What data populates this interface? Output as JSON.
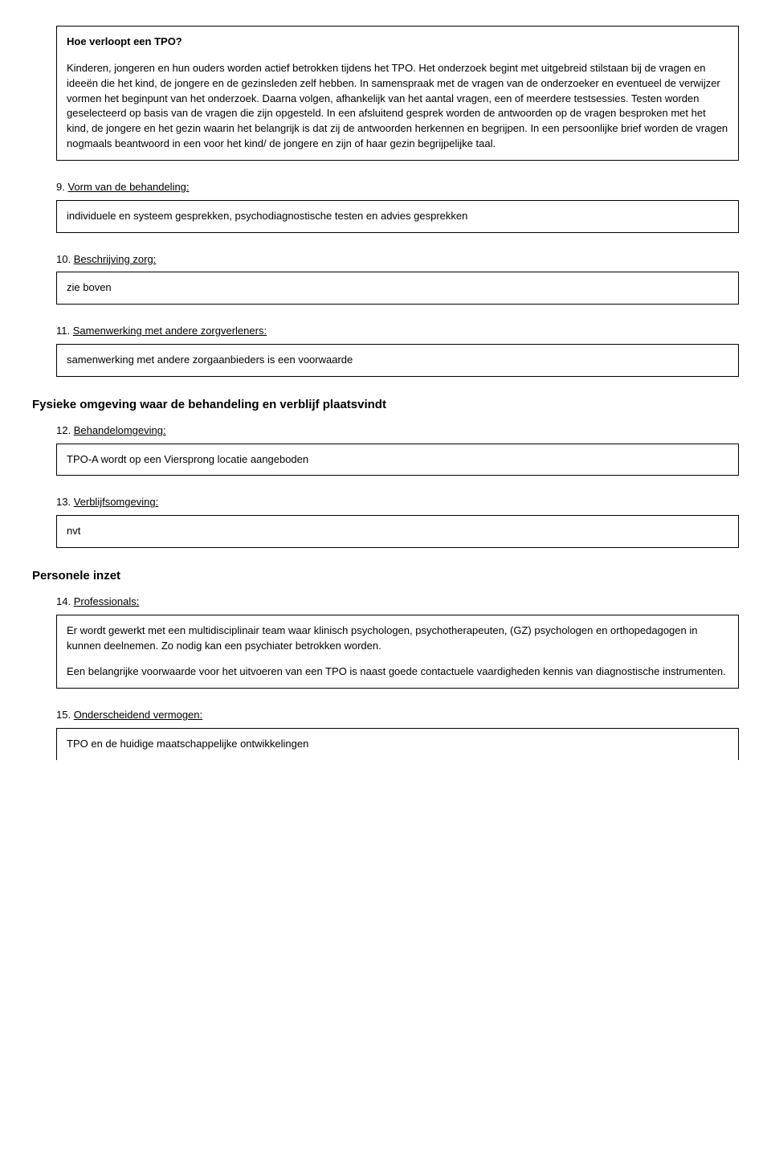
{
  "box1": {
    "title": "Hoe verloopt een TPO?",
    "para1": "Kinderen, jongeren en hun ouders worden actief betrokken tijdens het TPO. Het onderzoek begint met uitgebreid stilstaan bij de vragen en ideeën die het kind, de jongere en de gezinsleden zelf hebben. In samenspraak met de vragen van de onderzoeker en eventueel de verwijzer vormen het beginpunt van het onderzoek. Daarna volgen, afhankelijk van het aantal vragen, een of meerdere testsessies. Testen worden geselecteerd op basis van de vragen die zijn opgesteld. In een afsluitend gesprek worden de antwoorden op de vragen besproken met het kind, de jongere en het gezin waarin het belangrijk is dat zij de antwoorden herkennen en begrijpen. In een persoonlijke brief worden de vragen nogmaals beantwoord in een voor het kind/ de jongere en zijn of haar gezin begrijpelijke taal."
  },
  "s9": {
    "num": "9. ",
    "label": "Vorm van de behandeling:",
    "content": "individuele en systeem gesprekken, psychodiagnostische testen en advies gesprekken"
  },
  "s10": {
    "num": "10. ",
    "label": "Beschrijving zorg:",
    "content": "zie boven"
  },
  "s11": {
    "num": "11. ",
    "label": "Samenwerking met andere zorgverleners:",
    "content": "samenwerking met andere zorgaanbieders is een voorwaarde"
  },
  "h_fysiek": "Fysieke omgeving waar de behandeling en verblijf plaatsvindt",
  "s12": {
    "num": "12. ",
    "label": "Behandelomgeving:",
    "content": "TPO-A wordt op een Viersprong locatie aangeboden"
  },
  "s13": {
    "num": "13. ",
    "label": "Verblijfsomgeving:",
    "content": "nvt"
  },
  "h_personeel": "Personele inzet",
  "s14": {
    "num": "14. ",
    "label": "Professionals:",
    "p1": "Er wordt gewerkt met een multidisciplinair team waar klinisch psychologen, psychotherapeuten, (GZ) psychologen en orthopedagogen in kunnen deelnemen. Zo nodig kan een psychiater betrokken worden.",
    "p2": "Een belangrijke voorwaarde voor het uitvoeren van een TPO is naast goede contactuele vaardigheden kennis van diagnostische instrumenten."
  },
  "s15": {
    "num": "15. ",
    "label": "Onderscheidend vermogen:",
    "content": "TPO en de huidige maatschappelijke ontwikkelingen"
  }
}
